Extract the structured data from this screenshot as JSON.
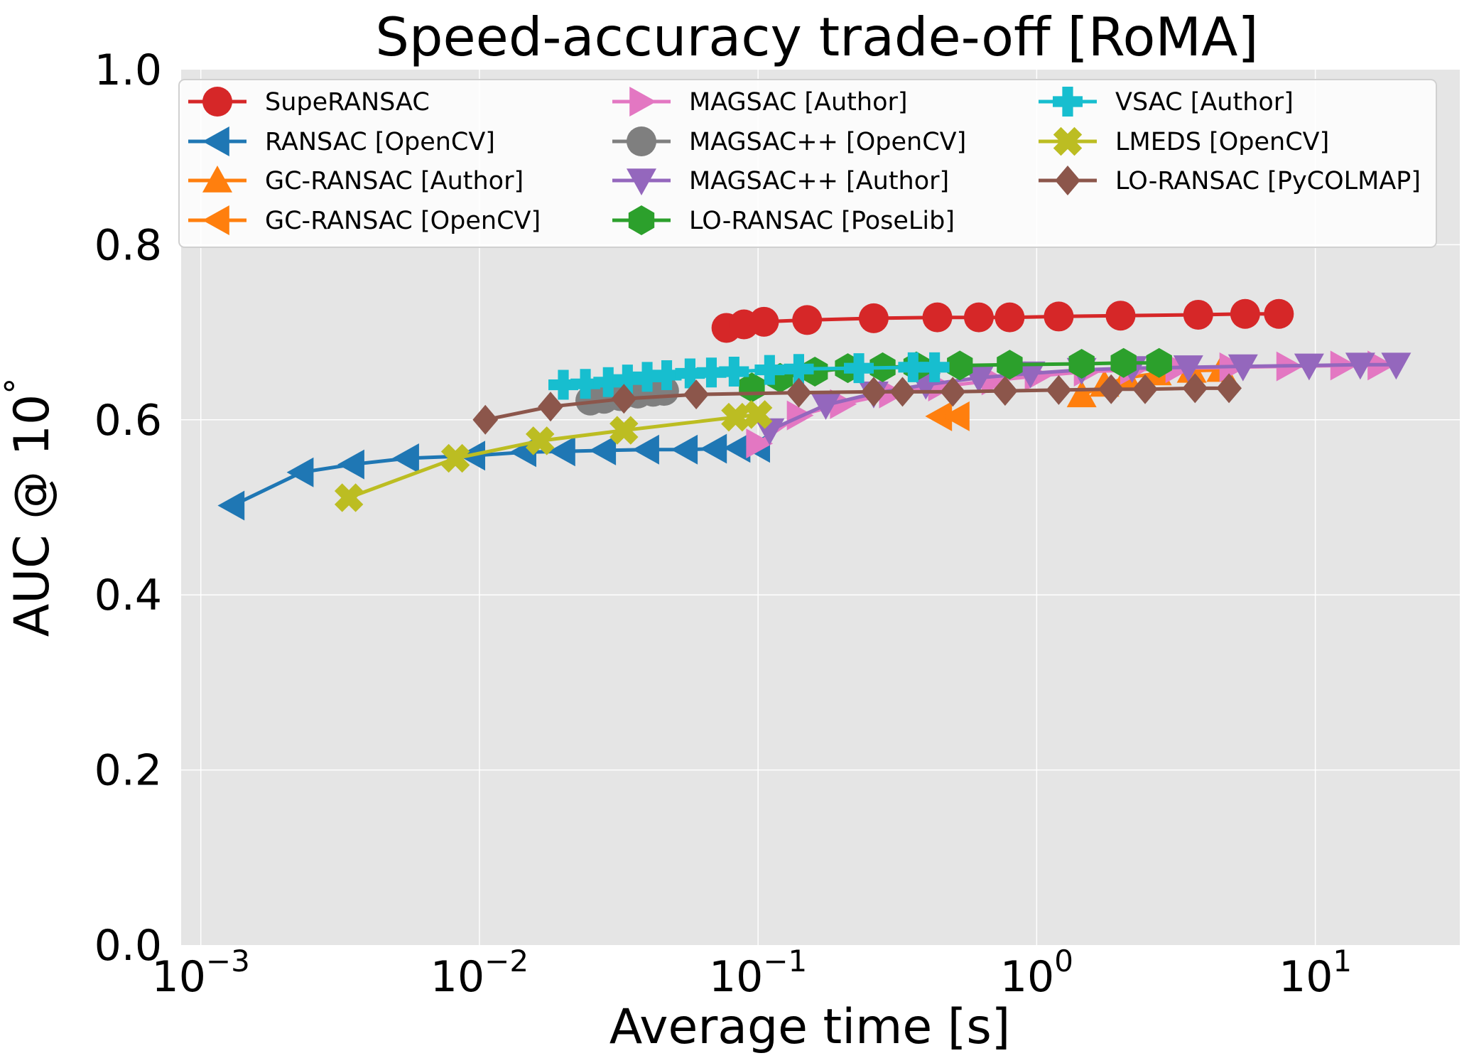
{
  "chart_data": {
    "type": "line",
    "title": "Speed-accuracy trade-off [RoMA]",
    "xlabel": "Average time [s]",
    "ylabel": "AUC @ 10",
    "ylabel_superscript": "°",
    "x_scale": "log",
    "xlim": [
      0.00085,
      33
    ],
    "ylim": [
      0.0,
      1.0
    ],
    "x_ticks": [
      {
        "value": 0.001,
        "base": "10",
        "exp": "−3"
      },
      {
        "value": 0.01,
        "base": "10",
        "exp": "−2"
      },
      {
        "value": 0.1,
        "base": "10",
        "exp": "−1"
      },
      {
        "value": 1,
        "base": "10",
        "exp": "0"
      },
      {
        "value": 10,
        "base": "10",
        "exp": "1"
      }
    ],
    "y_ticks": [
      {
        "value": 0.0,
        "label": "0.0"
      },
      {
        "value": 0.2,
        "label": "0.2"
      },
      {
        "value": 0.4,
        "label": "0.4"
      },
      {
        "value": 0.6,
        "label": "0.6"
      },
      {
        "value": 0.8,
        "label": "0.8"
      },
      {
        "value": 1.0,
        "label": "1.0"
      }
    ],
    "grid": true,
    "legend_position": "upper",
    "legend_columns": 3,
    "series": [
      {
        "name": "SupeRANSAC",
        "color": "#d62728",
        "marker": "circle",
        "points": [
          [
            0.077,
            0.705
          ],
          [
            0.089,
            0.709
          ],
          [
            0.105,
            0.712
          ],
          [
            0.15,
            0.714
          ],
          [
            0.26,
            0.716
          ],
          [
            0.44,
            0.717
          ],
          [
            0.62,
            0.717
          ],
          [
            0.8,
            0.717
          ],
          [
            1.2,
            0.718
          ],
          [
            2.0,
            0.719
          ],
          [
            3.8,
            0.72
          ],
          [
            5.6,
            0.721
          ],
          [
            7.4,
            0.721
          ]
        ]
      },
      {
        "name": "RANSAC [OpenCV]",
        "color": "#1f77b4",
        "marker": "triangle-left",
        "points": [
          [
            0.0013,
            0.502
          ],
          [
            0.0023,
            0.54
          ],
          [
            0.0035,
            0.549
          ],
          [
            0.0055,
            0.556
          ],
          [
            0.0095,
            0.559
          ],
          [
            0.0145,
            0.563
          ],
          [
            0.02,
            0.564
          ],
          [
            0.028,
            0.565
          ],
          [
            0.04,
            0.566
          ],
          [
            0.055,
            0.566
          ],
          [
            0.07,
            0.567
          ],
          [
            0.085,
            0.568
          ],
          [
            0.1,
            0.568
          ]
        ]
      },
      {
        "name": "GC-RANSAC [Author]",
        "color": "#ff7f0e",
        "marker": "triangle-up",
        "points": [
          [
            1.45,
            0.628
          ],
          [
            1.75,
            0.64
          ],
          [
            2.1,
            0.648
          ],
          [
            2.7,
            0.653
          ],
          [
            3.6,
            0.656
          ],
          [
            4.6,
            0.657
          ]
        ]
      },
      {
        "name": "GC-RANSAC [OpenCV]",
        "color": "#ff7f0e",
        "marker": "triangle-left",
        "points": [
          [
            0.45,
            0.604
          ],
          [
            0.52,
            0.604
          ]
        ]
      },
      {
        "name": "MAGSAC [Author]",
        "color": "#e377c2",
        "marker": "triangle-right",
        "points": [
          [
            0.1,
            0.573
          ],
          [
            0.14,
            0.605
          ],
          [
            0.2,
            0.618
          ],
          [
            0.3,
            0.63
          ],
          [
            0.45,
            0.638
          ],
          [
            0.7,
            0.645
          ],
          [
            1.0,
            0.65
          ],
          [
            1.5,
            0.655
          ],
          [
            2.2,
            0.657
          ],
          [
            3.2,
            0.659
          ],
          [
            5.0,
            0.66
          ],
          [
            8.0,
            0.661
          ],
          [
            12.5,
            0.662
          ],
          [
            17.0,
            0.662
          ]
        ]
      },
      {
        "name": "MAGSAC++ [OpenCV]",
        "color": "#7f7f7f",
        "marker": "circle",
        "points": [
          [
            0.025,
            0.622
          ],
          [
            0.028,
            0.624
          ],
          [
            0.032,
            0.627
          ],
          [
            0.037,
            0.63
          ],
          [
            0.042,
            0.632
          ],
          [
            0.046,
            0.633
          ]
        ]
      },
      {
        "name": "MAGSAC++ [Author]",
        "color": "#9467bd",
        "marker": "triangle-down",
        "points": [
          [
            0.11,
            0.588
          ],
          [
            0.175,
            0.617
          ],
          [
            0.26,
            0.63
          ],
          [
            0.4,
            0.64
          ],
          [
            0.62,
            0.648
          ],
          [
            0.95,
            0.653
          ],
          [
            1.45,
            0.657
          ],
          [
            2.2,
            0.659
          ],
          [
            3.5,
            0.66
          ],
          [
            5.5,
            0.661
          ],
          [
            9.5,
            0.662
          ],
          [
            14.5,
            0.663
          ],
          [
            19.5,
            0.663
          ]
        ]
      },
      {
        "name": "LO-RANSAC [PoseLib]",
        "color": "#2ca02c",
        "marker": "hexagon",
        "points": [
          [
            0.095,
            0.637
          ],
          [
            0.12,
            0.648
          ],
          [
            0.16,
            0.655
          ],
          [
            0.21,
            0.659
          ],
          [
            0.28,
            0.66
          ],
          [
            0.37,
            0.661
          ],
          [
            0.53,
            0.662
          ],
          [
            0.8,
            0.663
          ],
          [
            1.45,
            0.664
          ],
          [
            2.05,
            0.665
          ],
          [
            2.75,
            0.665
          ]
        ]
      },
      {
        "name": "VSAC [Author]",
        "color": "#17becf",
        "marker": "plus",
        "points": [
          [
            0.02,
            0.64
          ],
          [
            0.024,
            0.641
          ],
          [
            0.029,
            0.643
          ],
          [
            0.034,
            0.646
          ],
          [
            0.04,
            0.649
          ],
          [
            0.047,
            0.651
          ],
          [
            0.057,
            0.653
          ],
          [
            0.068,
            0.654
          ],
          [
            0.082,
            0.655
          ],
          [
            0.11,
            0.657
          ],
          [
            0.14,
            0.658
          ],
          [
            0.23,
            0.659
          ],
          [
            0.36,
            0.66
          ],
          [
            0.43,
            0.66
          ]
        ]
      },
      {
        "name": "LMEDS [OpenCV]",
        "color": "#bcbd22",
        "marker": "x",
        "points": [
          [
            0.0034,
            0.511
          ],
          [
            0.0082,
            0.556
          ],
          [
            0.0165,
            0.576
          ],
          [
            0.033,
            0.588
          ],
          [
            0.083,
            0.603
          ],
          [
            0.1,
            0.606
          ]
        ]
      },
      {
        "name": "LO-RANSAC [PyCOLMAP]",
        "color": "#8c564b",
        "marker": "diamond",
        "points": [
          [
            0.0105,
            0.6
          ],
          [
            0.018,
            0.615
          ],
          [
            0.033,
            0.624
          ],
          [
            0.06,
            0.629
          ],
          [
            0.14,
            0.631
          ],
          [
            0.26,
            0.632
          ],
          [
            0.33,
            0.632
          ],
          [
            0.5,
            0.632
          ],
          [
            0.77,
            0.633
          ],
          [
            1.2,
            0.634
          ],
          [
            1.85,
            0.635
          ],
          [
            2.45,
            0.635
          ],
          [
            3.7,
            0.636
          ],
          [
            4.9,
            0.636
          ]
        ]
      }
    ]
  }
}
